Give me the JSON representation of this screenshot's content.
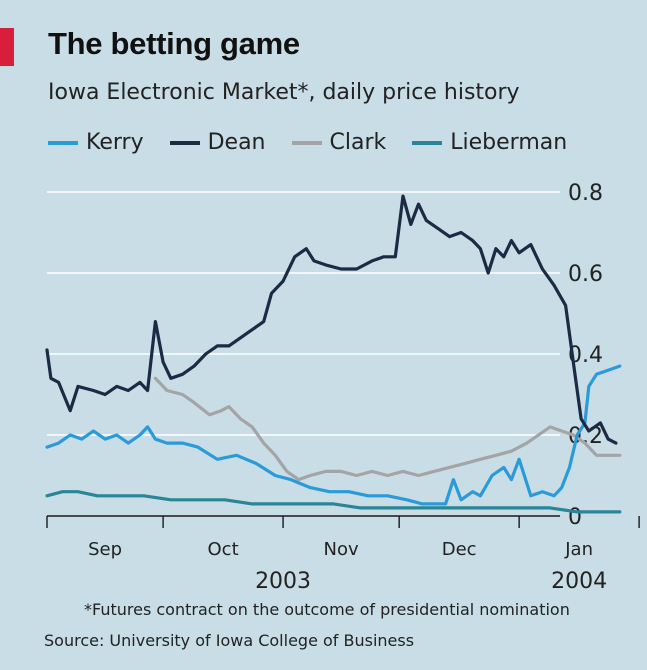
{
  "header": {
    "title": "The betting game",
    "subtitle": "Iowa Electronic Market*, daily price history"
  },
  "footer": {
    "footnote": "*Futures contract on the outcome of presidential nomination",
    "source": "Source: University of Iowa College of Business"
  },
  "chart_data": {
    "type": "line",
    "title": "The betting game",
    "subtitle": "Iowa Electronic Market*, daily price history",
    "xlabel": "",
    "ylabel": "",
    "ylim": [
      0,
      0.8
    ],
    "yticks": [
      "0",
      "0.2",
      "0.4",
      "0.6",
      "0.8"
    ],
    "xticks": [
      "Sep",
      "Oct",
      "Nov",
      "Dec",
      "Jan"
    ],
    "year_labels": [
      "2003",
      "2004"
    ],
    "x_start": "2003-09-01",
    "grid": true,
    "legend_position": "top",
    "series": [
      {
        "name": "Kerry",
        "color": "#2b9ad8",
        "points": [
          [
            "2003-09-01",
            0.17
          ],
          [
            "2003-09-04",
            0.18
          ],
          [
            "2003-09-07",
            0.2
          ],
          [
            "2003-09-10",
            0.19
          ],
          [
            "2003-09-13",
            0.21
          ],
          [
            "2003-09-16",
            0.19
          ],
          [
            "2003-09-19",
            0.2
          ],
          [
            "2003-09-22",
            0.18
          ],
          [
            "2003-09-25",
            0.2
          ],
          [
            "2003-09-27",
            0.22
          ],
          [
            "2003-09-29",
            0.19
          ],
          [
            "2003-10-02",
            0.18
          ],
          [
            "2003-10-06",
            0.18
          ],
          [
            "2003-10-10",
            0.17
          ],
          [
            "2003-10-15",
            0.14
          ],
          [
            "2003-10-20",
            0.15
          ],
          [
            "2003-10-25",
            0.13
          ],
          [
            "2003-10-30",
            0.1
          ],
          [
            "2003-11-03",
            0.09
          ],
          [
            "2003-11-08",
            0.07
          ],
          [
            "2003-11-13",
            0.06
          ],
          [
            "2003-11-18",
            0.06
          ],
          [
            "2003-11-23",
            0.05
          ],
          [
            "2003-11-28",
            0.05
          ],
          [
            "2003-12-03",
            0.04
          ],
          [
            "2003-12-07",
            0.03
          ],
          [
            "2003-12-10",
            0.03
          ],
          [
            "2003-12-13",
            0.03
          ],
          [
            "2003-12-15",
            0.09
          ],
          [
            "2003-12-17",
            0.04
          ],
          [
            "2003-12-20",
            0.06
          ],
          [
            "2003-12-22",
            0.05
          ],
          [
            "2003-12-25",
            0.1
          ],
          [
            "2003-12-28",
            0.12
          ],
          [
            "2003-12-30",
            0.09
          ],
          [
            "2004-01-01",
            0.14
          ],
          [
            "2004-01-04",
            0.05
          ],
          [
            "2004-01-07",
            0.06
          ],
          [
            "2004-01-10",
            0.05
          ],
          [
            "2004-01-12",
            0.07
          ],
          [
            "2004-01-14",
            0.12
          ],
          [
            "2004-01-16",
            0.2
          ],
          [
            "2004-01-18",
            0.23
          ],
          [
            "2004-01-19",
            0.32
          ],
          [
            "2004-01-21",
            0.35
          ],
          [
            "2004-01-24",
            0.36
          ],
          [
            "2004-01-27",
            0.37
          ]
        ]
      },
      {
        "name": "Dean",
        "color": "#1c2a44",
        "points": [
          [
            "2003-09-01",
            0.41
          ],
          [
            "2003-09-02",
            0.34
          ],
          [
            "2003-09-04",
            0.33
          ],
          [
            "2003-09-07",
            0.26
          ],
          [
            "2003-09-09",
            0.32
          ],
          [
            "2003-09-13",
            0.31
          ],
          [
            "2003-09-16",
            0.3
          ],
          [
            "2003-09-19",
            0.32
          ],
          [
            "2003-09-22",
            0.31
          ],
          [
            "2003-09-25",
            0.33
          ],
          [
            "2003-09-27",
            0.31
          ],
          [
            "2003-09-29",
            0.48
          ],
          [
            "2003-10-01",
            0.38
          ],
          [
            "2003-10-03",
            0.34
          ],
          [
            "2003-10-06",
            0.35
          ],
          [
            "2003-10-09",
            0.37
          ],
          [
            "2003-10-12",
            0.4
          ],
          [
            "2003-10-15",
            0.42
          ],
          [
            "2003-10-18",
            0.42
          ],
          [
            "2003-10-21",
            0.44
          ],
          [
            "2003-10-24",
            0.46
          ],
          [
            "2003-10-27",
            0.48
          ],
          [
            "2003-10-29",
            0.55
          ],
          [
            "2003-11-01",
            0.58
          ],
          [
            "2003-11-04",
            0.64
          ],
          [
            "2003-11-07",
            0.66
          ],
          [
            "2003-11-09",
            0.63
          ],
          [
            "2003-11-12",
            0.62
          ],
          [
            "2003-11-16",
            0.61
          ],
          [
            "2003-11-20",
            0.61
          ],
          [
            "2003-11-24",
            0.63
          ],
          [
            "2003-11-27",
            0.64
          ],
          [
            "2003-11-30",
            0.64
          ],
          [
            "2003-12-02",
            0.79
          ],
          [
            "2003-12-04",
            0.72
          ],
          [
            "2003-12-06",
            0.77
          ],
          [
            "2003-12-08",
            0.73
          ],
          [
            "2003-12-11",
            0.71
          ],
          [
            "2003-12-14",
            0.69
          ],
          [
            "2003-12-17",
            0.7
          ],
          [
            "2003-12-20",
            0.68
          ],
          [
            "2003-12-22",
            0.66
          ],
          [
            "2003-12-24",
            0.6
          ],
          [
            "2003-12-26",
            0.66
          ],
          [
            "2003-12-28",
            0.64
          ],
          [
            "2003-12-30",
            0.68
          ],
          [
            "2004-01-01",
            0.65
          ],
          [
            "2004-01-04",
            0.67
          ],
          [
            "2004-01-07",
            0.61
          ],
          [
            "2004-01-10",
            0.57
          ],
          [
            "2004-01-13",
            0.52
          ],
          [
            "2004-01-15",
            0.38
          ],
          [
            "2004-01-17",
            0.24
          ],
          [
            "2004-01-19",
            0.21
          ],
          [
            "2004-01-22",
            0.23
          ],
          [
            "2004-01-24",
            0.19
          ],
          [
            "2004-01-26",
            0.18
          ]
        ]
      },
      {
        "name": "Clark",
        "color": "#a4a4a6",
        "points": [
          [
            "2003-09-29",
            0.34
          ],
          [
            "2003-10-02",
            0.31
          ],
          [
            "2003-10-06",
            0.3
          ],
          [
            "2003-10-09",
            0.28
          ],
          [
            "2003-10-13",
            0.25
          ],
          [
            "2003-10-16",
            0.26
          ],
          [
            "2003-10-18",
            0.27
          ],
          [
            "2003-10-21",
            0.24
          ],
          [
            "2003-10-24",
            0.22
          ],
          [
            "2003-10-27",
            0.18
          ],
          [
            "2003-10-30",
            0.15
          ],
          [
            "2003-11-02",
            0.11
          ],
          [
            "2003-11-05",
            0.09
          ],
          [
            "2003-11-08",
            0.1
          ],
          [
            "2003-11-12",
            0.11
          ],
          [
            "2003-11-16",
            0.11
          ],
          [
            "2003-11-20",
            0.1
          ],
          [
            "2003-11-24",
            0.11
          ],
          [
            "2003-11-28",
            0.1
          ],
          [
            "2003-12-02",
            0.11
          ],
          [
            "2003-12-06",
            0.1
          ],
          [
            "2003-12-10",
            0.11
          ],
          [
            "2003-12-14",
            0.12
          ],
          [
            "2003-12-18",
            0.13
          ],
          [
            "2003-12-22",
            0.14
          ],
          [
            "2003-12-26",
            0.15
          ],
          [
            "2003-12-30",
            0.16
          ],
          [
            "2004-01-03",
            0.18
          ],
          [
            "2004-01-06",
            0.2
          ],
          [
            "2004-01-09",
            0.22
          ],
          [
            "2004-01-12",
            0.21
          ],
          [
            "2004-01-15",
            0.2
          ],
          [
            "2004-01-18",
            0.18
          ],
          [
            "2004-01-21",
            0.15
          ],
          [
            "2004-01-24",
            0.15
          ],
          [
            "2004-01-27",
            0.15
          ]
        ]
      },
      {
        "name": "Lieberman",
        "color": "#2a8597",
        "points": [
          [
            "2003-09-01",
            0.05
          ],
          [
            "2003-09-05",
            0.06
          ],
          [
            "2003-09-09",
            0.06
          ],
          [
            "2003-09-14",
            0.05
          ],
          [
            "2003-09-20",
            0.05
          ],
          [
            "2003-09-26",
            0.05
          ],
          [
            "2003-10-03",
            0.04
          ],
          [
            "2003-10-10",
            0.04
          ],
          [
            "2003-10-17",
            0.04
          ],
          [
            "2003-10-24",
            0.03
          ],
          [
            "2003-10-31",
            0.03
          ],
          [
            "2003-11-07",
            0.03
          ],
          [
            "2003-11-14",
            0.03
          ],
          [
            "2003-11-21",
            0.02
          ],
          [
            "2003-11-28",
            0.02
          ],
          [
            "2003-12-05",
            0.02
          ],
          [
            "2003-12-12",
            0.02
          ],
          [
            "2003-12-19",
            0.02
          ],
          [
            "2003-12-26",
            0.02
          ],
          [
            "2004-01-02",
            0.02
          ],
          [
            "2004-01-09",
            0.02
          ],
          [
            "2004-01-16",
            0.01
          ],
          [
            "2004-01-23",
            0.01
          ],
          [
            "2004-01-27",
            0.01
          ]
        ]
      }
    ]
  }
}
